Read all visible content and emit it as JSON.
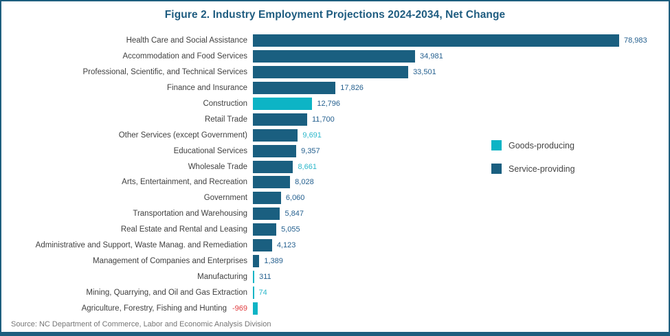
{
  "title": "Figure 2. Industry Employment Projections 2024-2034, Net Change",
  "source": "Source: NC Department of Commerce, Labor and Economic Analysis Division",
  "legend": {
    "items": [
      {
        "label": "Goods-producing",
        "color": "#0DB4C5"
      },
      {
        "label": "Service-providing",
        "color": "#1A5F80"
      }
    ]
  },
  "colors": {
    "frame_border": "#1D5E7E",
    "title_text": "#1E5C80",
    "goods_bar": "#0DB4C5",
    "service_bar": "#1A5F80",
    "category_text": "#3F3F3F",
    "value_dark": "#25608F",
    "value_cyan": "#2BB7CA",
    "value_red": "#E0393C",
    "source_text": "#757575",
    "legend_text": "#444444"
  },
  "chart_data": {
    "type": "bar",
    "orientation": "horizontal",
    "title": "Figure 2. Industry Employment Projections 2024-2034, Net Change",
    "xlabel": "",
    "ylabel": "",
    "xlim": [
      0,
      80000
    ],
    "grid": false,
    "legend_position": "right",
    "series_field": "group",
    "rows": [
      {
        "category": "Health Care and Social Assistance",
        "value": 78983,
        "label": "78,983",
        "group": "Service-providing",
        "label_color": "dark"
      },
      {
        "category": "Accommodation and Food Services",
        "value": 34981,
        "label": "34,981",
        "group": "Service-providing",
        "label_color": "dark"
      },
      {
        "category": "Professional, Scientific, and Technical Services",
        "value": 33501,
        "label": "33,501",
        "group": "Service-providing",
        "label_color": "dark"
      },
      {
        "category": "Finance and Insurance",
        "value": 17826,
        "label": "17,826",
        "group": "Service-providing",
        "label_color": "dark"
      },
      {
        "category": "Construction",
        "value": 12796,
        "label": "12,796",
        "group": "Goods-producing",
        "label_color": "dark"
      },
      {
        "category": "Retail Trade",
        "value": 11700,
        "label": "11,700",
        "group": "Service-providing",
        "label_color": "dark"
      },
      {
        "category": "Other Services (except Government)",
        "value": 9691,
        "label": "9,691",
        "group": "Service-providing",
        "label_color": "cyan"
      },
      {
        "category": "Educational Services",
        "value": 9357,
        "label": "9,357",
        "group": "Service-providing",
        "label_color": "dark"
      },
      {
        "category": "Wholesale Trade",
        "value": 8661,
        "label": "8,661",
        "group": "Service-providing",
        "label_color": "cyan"
      },
      {
        "category": "Arts, Entertainment, and Recreation",
        "value": 8028,
        "label": "8,028",
        "group": "Service-providing",
        "label_color": "dark"
      },
      {
        "category": "Government",
        "value": 6060,
        "label": "6,060",
        "group": "Service-providing",
        "label_color": "dark"
      },
      {
        "category": "Transportation and Warehousing",
        "value": 5847,
        "label": "5,847",
        "group": "Service-providing",
        "label_color": "dark"
      },
      {
        "category": "Real Estate and Rental and Leasing",
        "value": 5055,
        "label": "5,055",
        "group": "Service-providing",
        "label_color": "dark"
      },
      {
        "category": "Administrative and Support, Waste Manag. and Remediation",
        "value": 4123,
        "label": "4,123",
        "group": "Service-providing",
        "label_color": "dark"
      },
      {
        "category": "Management of Companies and Enterprises",
        "value": 1389,
        "label": "1,389",
        "group": "Service-providing",
        "label_color": "dark"
      },
      {
        "category": "Manufacturing",
        "value": 311,
        "label": "311",
        "group": "Goods-producing",
        "label_color": "dark"
      },
      {
        "category": "Mining, Quarrying, and Oil and Gas Extraction",
        "value": 74,
        "label": "74",
        "group": "Goods-producing",
        "label_color": "cyan"
      },
      {
        "category": "Agriculture, Forestry, Fishing and Hunting",
        "value": -969,
        "label": "-969",
        "group": "Goods-producing",
        "label_color": "red"
      }
    ]
  }
}
